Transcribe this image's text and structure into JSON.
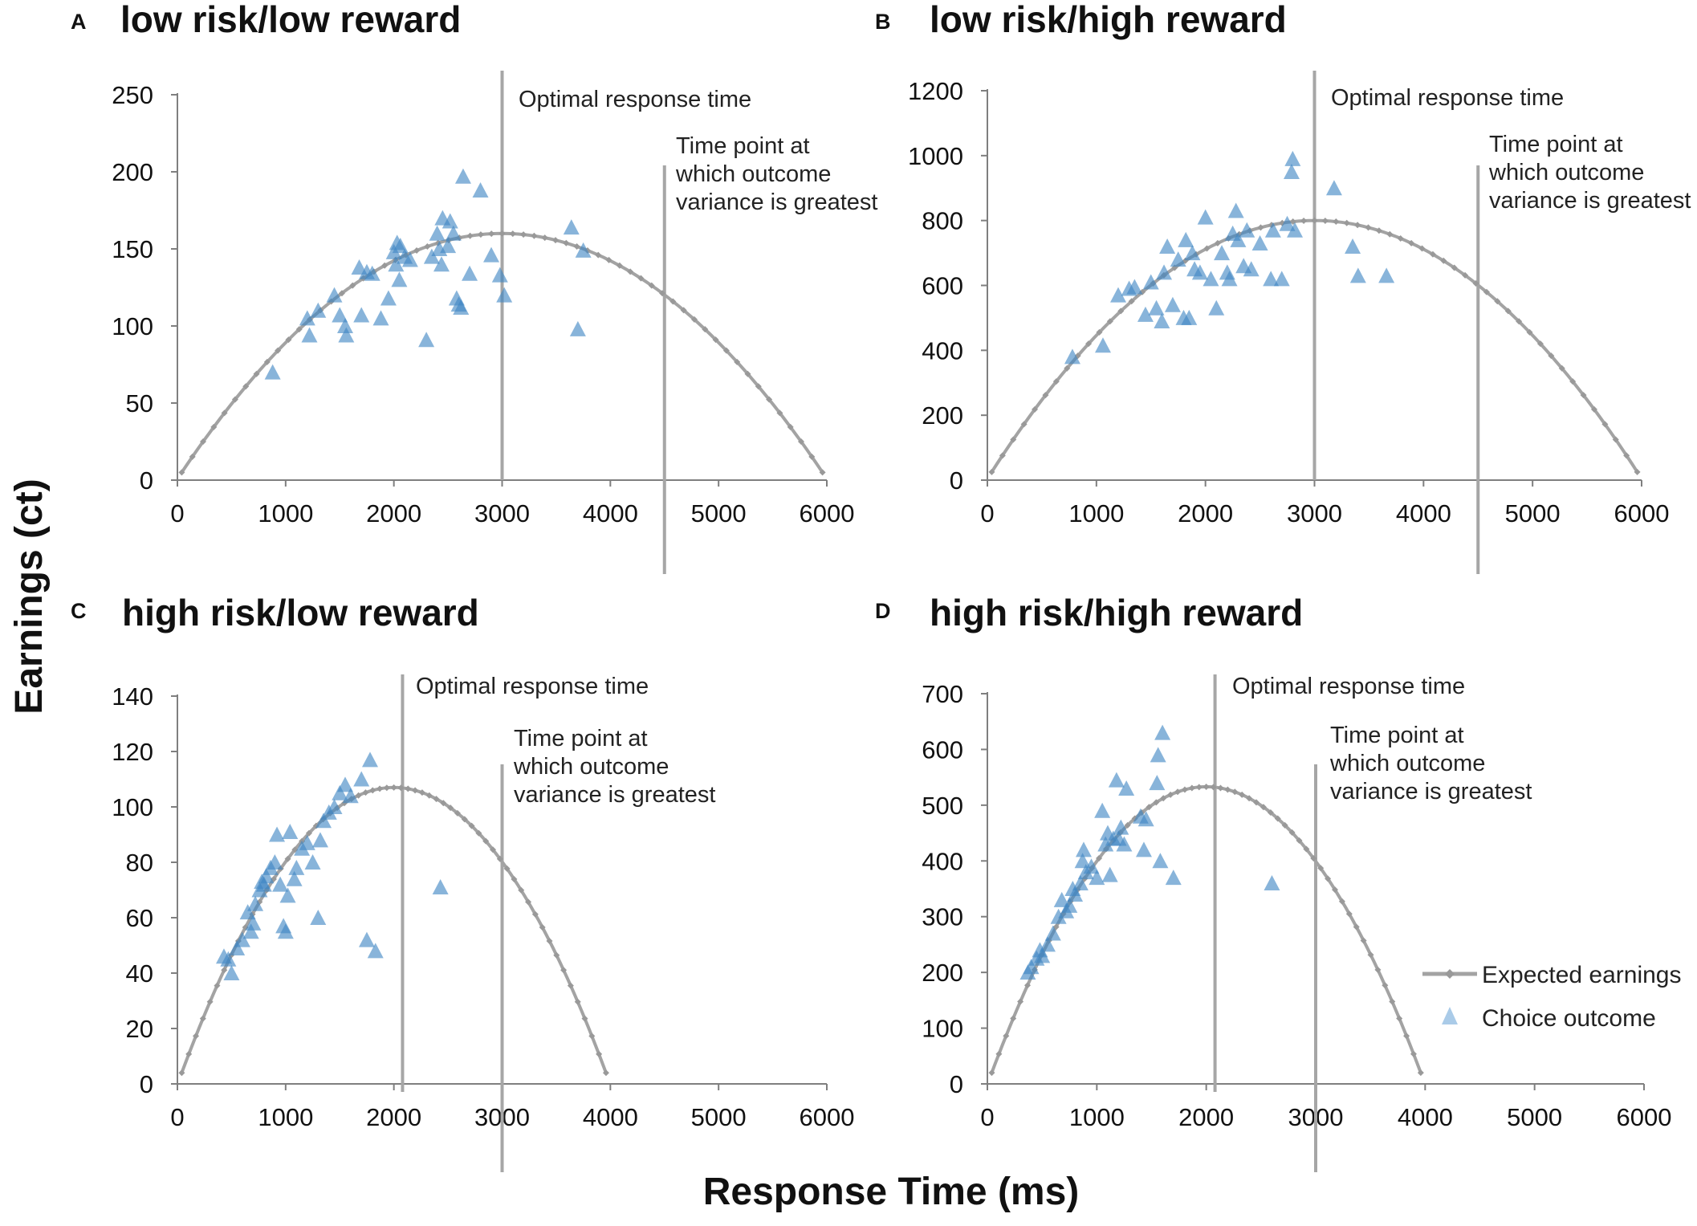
{
  "figure": {
    "xlabel": "Response Time (ms)",
    "ylabel": "Earnings (ct)",
    "legend": {
      "expected_label": "Expected earnings",
      "choice_label": "Choice outcome"
    },
    "colors": {
      "curve": "#a3a3a3",
      "marker": "#3f86c4",
      "vline": "#a6a6a6",
      "axis": "#7f7f7f"
    }
  },
  "chart_data": [
    {
      "type": "scatter",
      "letter": "A",
      "title": "low risk/low reward",
      "xlim": [
        0,
        6000
      ],
      "ylim": [
        0,
        250
      ],
      "x_ticks": [
        "0",
        "1000",
        "2000",
        "3000",
        "4000",
        "5000",
        "6000"
      ],
      "y_ticks": [
        "0",
        "50",
        "100",
        "150",
        "200",
        "250"
      ],
      "curve": {
        "peak_x": 3000,
        "peak_y": 160,
        "x_end": 6000,
        "y_start": 5,
        "y_end": 5
      },
      "optimal_x": 3000,
      "optimal_label": "Optimal response time",
      "variance_x": 4500,
      "variance_label": [
        "Time point at",
        "which outcome",
        "variance is greatest"
      ],
      "points": [
        [
          880,
          70
        ],
        [
          1200,
          105
        ],
        [
          1220,
          94
        ],
        [
          1300,
          110
        ],
        [
          1450,
          120
        ],
        [
          1500,
          107
        ],
        [
          1550,
          100
        ],
        [
          1560,
          94
        ],
        [
          1680,
          138
        ],
        [
          1700,
          107
        ],
        [
          1750,
          135
        ],
        [
          1800,
          134
        ],
        [
          1880,
          105
        ],
        [
          1950,
          118
        ],
        [
          2000,
          148
        ],
        [
          2020,
          140
        ],
        [
          2030,
          154
        ],
        [
          2050,
          130
        ],
        [
          2060,
          152
        ],
        [
          2100,
          145
        ],
        [
          2150,
          143
        ],
        [
          2300,
          91
        ],
        [
          2350,
          145
        ],
        [
          2400,
          160
        ],
        [
          2420,
          150
        ],
        [
          2440,
          140
        ],
        [
          2450,
          170
        ],
        [
          2500,
          152
        ],
        [
          2520,
          168
        ],
        [
          2550,
          160
        ],
        [
          2580,
          118
        ],
        [
          2600,
          114
        ],
        [
          2620,
          112
        ],
        [
          2640,
          197
        ],
        [
          2700,
          134
        ],
        [
          2800,
          188
        ],
        [
          2900,
          146
        ],
        [
          2980,
          133
        ],
        [
          3020,
          120
        ],
        [
          3640,
          164
        ],
        [
          3700,
          98
        ],
        [
          3750,
          149
        ]
      ]
    },
    {
      "type": "scatter",
      "letter": "B",
      "title": "low risk/high reward",
      "xlim": [
        0,
        6000
      ],
      "ylim": [
        0,
        1200
      ],
      "x_ticks": [
        "0",
        "1000",
        "2000",
        "3000",
        "4000",
        "5000",
        "6000"
      ],
      "y_ticks": [
        "0",
        "200",
        "400",
        "600",
        "800",
        "1000",
        "1200"
      ],
      "curve": {
        "peak_x": 3000,
        "peak_y": 800,
        "x_end": 6000,
        "y_start": 25,
        "y_end": 25
      },
      "optimal_x": 3000,
      "optimal_label": "Optimal response time",
      "variance_x": 4500,
      "variance_label": [
        "Time point at",
        "which outcome",
        "variance is greatest"
      ],
      "points": [
        [
          780,
          380
        ],
        [
          1060,
          415
        ],
        [
          1200,
          570
        ],
        [
          1300,
          590
        ],
        [
          1350,
          595
        ],
        [
          1450,
          510
        ],
        [
          1500,
          610
        ],
        [
          1550,
          530
        ],
        [
          1600,
          490
        ],
        [
          1620,
          640
        ],
        [
          1650,
          720
        ],
        [
          1700,
          540
        ],
        [
          1750,
          680
        ],
        [
          1800,
          500
        ],
        [
          1820,
          740
        ],
        [
          1850,
          500
        ],
        [
          1880,
          700
        ],
        [
          1900,
          650
        ],
        [
          1950,
          640
        ],
        [
          2000,
          810
        ],
        [
          2050,
          620
        ],
        [
          2100,
          530
        ],
        [
          2150,
          700
        ],
        [
          2200,
          640
        ],
        [
          2220,
          620
        ],
        [
          2250,
          760
        ],
        [
          2280,
          830
        ],
        [
          2300,
          740
        ],
        [
          2350,
          660
        ],
        [
          2380,
          770
        ],
        [
          2420,
          650
        ],
        [
          2500,
          730
        ],
        [
          2600,
          620
        ],
        [
          2620,
          770
        ],
        [
          2700,
          620
        ],
        [
          2750,
          790
        ],
        [
          2790,
          950
        ],
        [
          2800,
          990
        ],
        [
          2820,
          770
        ],
        [
          3180,
          900
        ],
        [
          3350,
          720
        ],
        [
          3400,
          630
        ],
        [
          3660,
          630
        ]
      ]
    },
    {
      "type": "scatter",
      "letter": "C",
      "title": "high risk/low reward",
      "xlim": [
        0,
        6000
      ],
      "ylim": [
        0,
        140
      ],
      "x_ticks": [
        "0",
        "1000",
        "2000",
        "3000",
        "4000",
        "5000",
        "6000"
      ],
      "y_ticks": [
        "0",
        "20",
        "40",
        "60",
        "80",
        "100",
        "120",
        "140"
      ],
      "curve": {
        "peak_x": 2000,
        "peak_y": 107,
        "x_end": 4000,
        "y_start": 4,
        "y_end": 4
      },
      "optimal_x": 2080,
      "optimal_label": "Optimal response time",
      "variance_x": 3000,
      "variance_label": [
        "Time point at",
        "which outcome",
        "variance is greatest"
      ],
      "points": [
        [
          430,
          46
        ],
        [
          470,
          45
        ],
        [
          500,
          40
        ],
        [
          550,
          49
        ],
        [
          600,
          52
        ],
        [
          650,
          62
        ],
        [
          680,
          55
        ],
        [
          700,
          58
        ],
        [
          720,
          65
        ],
        [
          760,
          70
        ],
        [
          780,
          73
        ],
        [
          800,
          72
        ],
        [
          820,
          75
        ],
        [
          860,
          78
        ],
        [
          900,
          80
        ],
        [
          920,
          90
        ],
        [
          950,
          72
        ],
        [
          980,
          57
        ],
        [
          1000,
          55
        ],
        [
          1020,
          68
        ],
        [
          1040,
          91
        ],
        [
          1080,
          74
        ],
        [
          1100,
          78
        ],
        [
          1150,
          85
        ],
        [
          1200,
          87
        ],
        [
          1250,
          80
        ],
        [
          1300,
          60
        ],
        [
          1320,
          88
        ],
        [
          1350,
          95
        ],
        [
          1400,
          98
        ],
        [
          1450,
          100
        ],
        [
          1500,
          105
        ],
        [
          1550,
          108
        ],
        [
          1600,
          104
        ],
        [
          1700,
          110
        ],
        [
          1750,
          52
        ],
        [
          1780,
          117
        ],
        [
          1830,
          48
        ],
        [
          2430,
          71
        ]
      ]
    },
    {
      "type": "scatter",
      "letter": "D",
      "title": "high risk/high reward",
      "xlim": [
        0,
        6000
      ],
      "ylim": [
        0,
        700
      ],
      "x_ticks": [
        "0",
        "1000",
        "2000",
        "3000",
        "4000",
        "5000",
        "6000"
      ],
      "y_ticks": [
        "0",
        "100",
        "200",
        "300",
        "400",
        "500",
        "600",
        "700"
      ],
      "curve": {
        "peak_x": 2000,
        "peak_y": 533,
        "x_end": 4000,
        "y_start": 20,
        "y_end": 20
      },
      "optimal_x": 2080,
      "optimal_label": "Optimal response time",
      "variance_x": 3000,
      "variance_label": [
        "Time point at",
        "which outcome",
        "variance is greatest"
      ],
      "points": [
        [
          370,
          200
        ],
        [
          400,
          210
        ],
        [
          450,
          225
        ],
        [
          480,
          240
        ],
        [
          500,
          230
        ],
        [
          550,
          250
        ],
        [
          600,
          270
        ],
        [
          650,
          300
        ],
        [
          680,
          330
        ],
        [
          720,
          310
        ],
        [
          750,
          320
        ],
        [
          780,
          350
        ],
        [
          800,
          340
        ],
        [
          850,
          360
        ],
        [
          870,
          400
        ],
        [
          880,
          420
        ],
        [
          900,
          380
        ],
        [
          950,
          390
        ],
        [
          1000,
          370
        ],
        [
          1050,
          490
        ],
        [
          1080,
          430
        ],
        [
          1100,
          450
        ],
        [
          1120,
          375
        ],
        [
          1150,
          440
        ],
        [
          1180,
          545
        ],
        [
          1200,
          440
        ],
        [
          1220,
          460
        ],
        [
          1250,
          430
        ],
        [
          1270,
          530
        ],
        [
          1400,
          480
        ],
        [
          1430,
          420
        ],
        [
          1450,
          475
        ],
        [
          1550,
          540
        ],
        [
          1560,
          590
        ],
        [
          1580,
          400
        ],
        [
          1600,
          630
        ],
        [
          1700,
          370
        ],
        [
          2600,
          360
        ]
      ]
    }
  ]
}
